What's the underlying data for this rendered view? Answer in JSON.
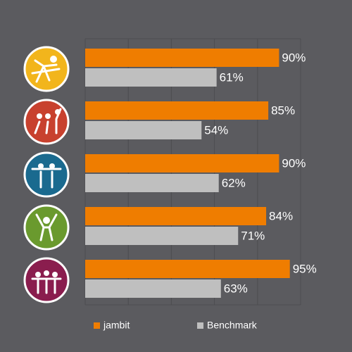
{
  "chart_data": {
    "type": "hbar",
    "categories": [
      null,
      null,
      null,
      null,
      null
    ],
    "series": [
      {
        "name": "jambit",
        "color": "#ef7d00",
        "values": [
          90,
          85,
          90,
          84,
          95
        ],
        "value_labels": [
          "90%",
          "85%",
          "90%",
          "84%",
          "95%"
        ]
      },
      {
        "name": "Benchmark",
        "color": "#bfbfbf",
        "values": [
          61,
          54,
          62,
          71,
          63
        ],
        "value_labels": [
          "61%",
          "54%",
          "62%",
          "71%",
          "63%"
        ]
      }
    ],
    "xlim": [
      0,
      100
    ],
    "xticks": [
      0,
      20,
      40,
      60,
      80,
      100
    ],
    "grid": true
  }
}
